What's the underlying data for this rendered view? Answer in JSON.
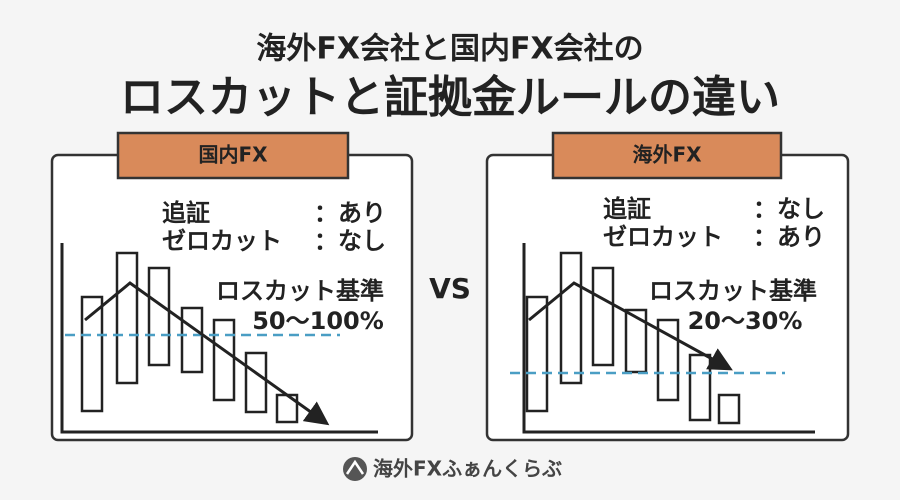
{
  "header": {
    "line1": "海外FX会社と国内FX会社の",
    "line2": "ロスカットと証拠金ルールの違い"
  },
  "panels": [
    {
      "tab": "国内FX",
      "rows": [
        {
          "label": "追証",
          "value": "：あり"
        },
        {
          "label": "ゼロカット",
          "value": "：なし"
        }
      ],
      "losscut_label": "ロスカット基準",
      "losscut_value": "50〜100%"
    },
    {
      "tab": "海外FX",
      "rows": [
        {
          "label": "追証",
          "value": "：なし"
        },
        {
          "label": "ゼロカット",
          "value": "：あり"
        }
      ],
      "losscut_label": "ロスカット基準",
      "losscut_value": "20〜30%"
    }
  ],
  "vs": "VS",
  "footer": {
    "logo": "海外FXふぁんくらぶ"
  }
}
